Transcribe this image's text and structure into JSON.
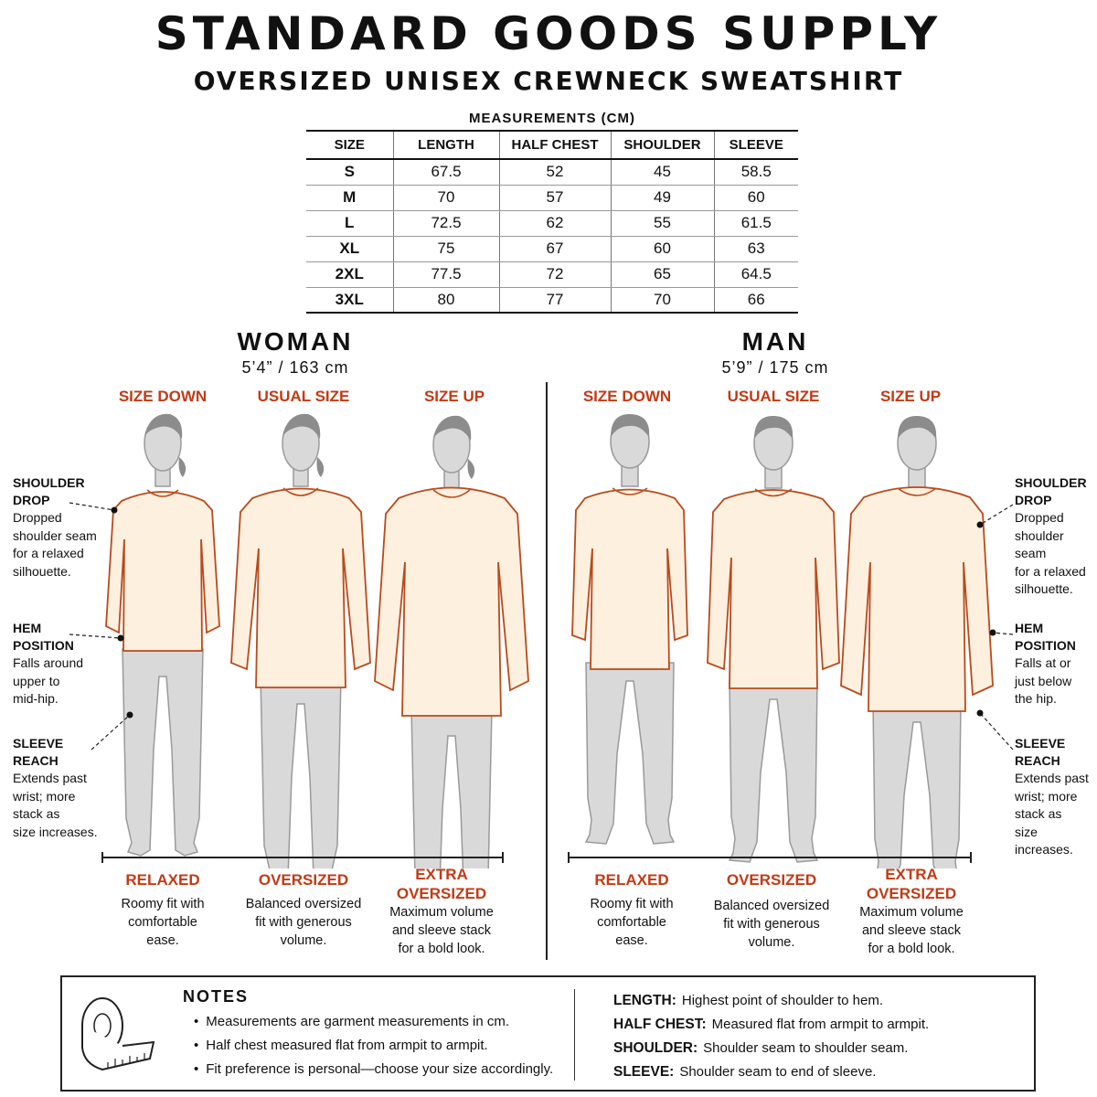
{
  "header": {
    "brand": "STANDARD GOODS SUPPLY",
    "product": "OVERSIZED UNISEX CREWNECK SWEATSHIRT"
  },
  "measurements": {
    "title": "MEASUREMENTS (CM)",
    "columns": [
      "SIZE",
      "LENGTH",
      "HALF CHEST",
      "SHOULDER",
      "SLEEVE"
    ],
    "rows": [
      [
        "S",
        "67.5",
        "52",
        "45",
        "58.5"
      ],
      [
        "M",
        "70",
        "57",
        "49",
        "60"
      ],
      [
        "L",
        "72.5",
        "62",
        "55",
        "61.5"
      ],
      [
        "XL",
        "75",
        "67",
        "60",
        "63"
      ],
      [
        "2XL",
        "77.5",
        "72",
        "65",
        "64.5"
      ],
      [
        "3XL",
        "80",
        "77",
        "70",
        "66"
      ]
    ]
  },
  "woman": {
    "title": "WOMAN",
    "height": "5’4” / 163 cm",
    "columns": [
      {
        "label": "SIZE DOWN",
        "fit_line1": "RELAXED",
        "fit_line2": "",
        "desc": [
          "Roomy fit with",
          "comfortable",
          "ease."
        ]
      },
      {
        "label": "USUAL SIZE",
        "fit_line1": "OVERSIZED",
        "fit_line2": "",
        "desc": [
          "Balanced oversized",
          "fit with generous",
          "volume."
        ]
      },
      {
        "label": "SIZE UP",
        "fit_line1": "EXTRA",
        "fit_line2": "OVERSIZED",
        "desc": [
          "Maximum volume",
          "and sleeve stack",
          "for a bold look."
        ]
      }
    ]
  },
  "man": {
    "title": "MAN",
    "height": "5’9” / 175 cm",
    "columns": [
      {
        "label": "SIZE DOWN",
        "fit_line1": "RELAXED",
        "fit_line2": "",
        "desc": [
          "Roomy fit with",
          "comfortable",
          "ease."
        ]
      },
      {
        "label": "USUAL SIZE",
        "fit_line1": "OVERSIZED",
        "fit_line2": "",
        "desc": [
          "Balanced oversized",
          "fit with generous",
          "volume."
        ]
      },
      {
        "label": "SIZE UP",
        "fit_line1": "EXTRA",
        "fit_line2": "OVERSIZED",
        "desc": [
          "Maximum volume",
          "and sleeve stack",
          "for a bold look."
        ]
      }
    ]
  },
  "callouts_left": {
    "shoulder": {
      "head": [
        "SHOULDER",
        "DROP"
      ],
      "body": [
        "Dropped",
        "shoulder seam",
        "for a relaxed",
        "silhouette."
      ]
    },
    "hem": {
      "head": [
        "HEM",
        "POSITION"
      ],
      "body": [
        "Falls around",
        "upper to",
        "mid-hip."
      ]
    },
    "sleeve": {
      "head": [
        "SLEEVE",
        "REACH"
      ],
      "body": [
        "Extends past",
        "wrist; more",
        "stack as",
        "size increases."
      ]
    }
  },
  "callouts_right": {
    "shoulder": {
      "head": [
        "SHOULDER",
        "DROP"
      ],
      "body": [
        "Dropped",
        "shoulder seam",
        "for a relaxed",
        "silhouette."
      ]
    },
    "hem": {
      "head": [
        "HEM",
        "POSITION"
      ],
      "body": [
        "Falls at or",
        "just below",
        "the hip."
      ]
    },
    "sleeve": {
      "head": [
        "SLEEVE",
        "REACH"
      ],
      "body": [
        "Extends past",
        "wrist; more",
        "stack as",
        "size increases."
      ]
    }
  },
  "notes": {
    "title": "NOTES",
    "icon": "measuring-tape-icon",
    "items": [
      "Measurements are garment measurements in cm.",
      "Half chest measured flat from armpit to armpit.",
      "Fit preference is personal—choose your size accordingly."
    ],
    "definitions": [
      {
        "term": "LENGTH:",
        "text": "Highest point of shoulder to hem."
      },
      {
        "term": "HALF CHEST:",
        "text": "Measured flat from armpit to armpit."
      },
      {
        "term": "SHOULDER:",
        "text": "Shoulder seam to shoulder seam."
      },
      {
        "term": "SLEEVE:",
        "text": "Shoulder seam to end of sleeve."
      }
    ]
  },
  "colors": {
    "accent": "#c23a14",
    "sweatshirt_fill": "#fdf0de",
    "sweatshirt_stroke": "#b94a1c",
    "figure_fill": "#d9d9d9",
    "figure_stroke": "#9a9a9a",
    "hair": "#8c8c8c"
  }
}
